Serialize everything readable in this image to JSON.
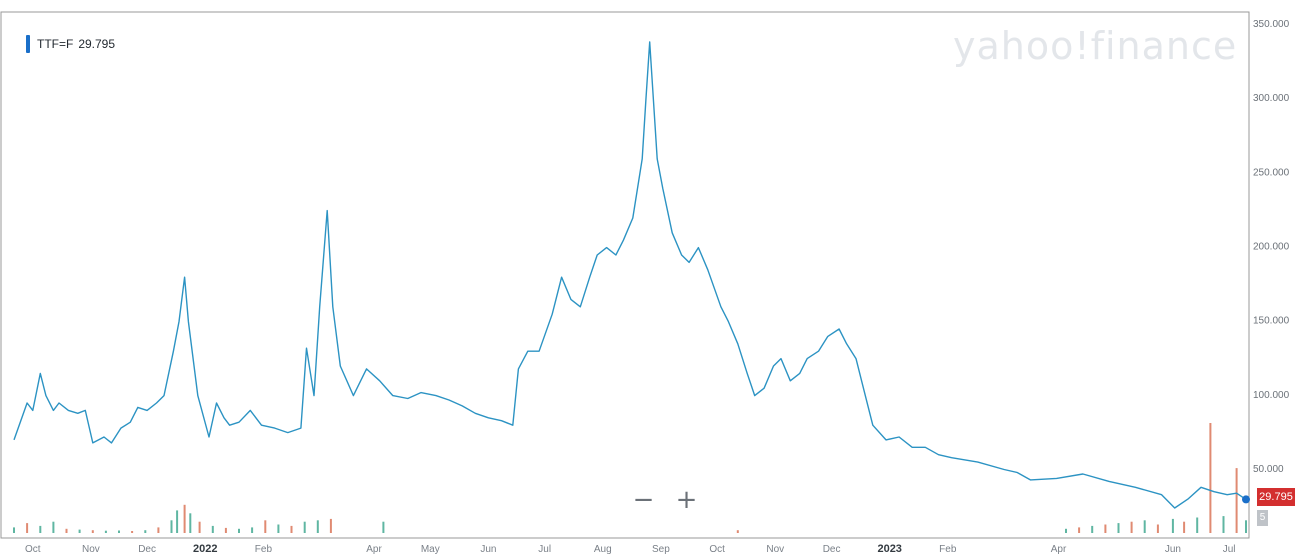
{
  "header": {
    "ticker_symbol": "TTF=F",
    "ticker_value": "29.795",
    "watermark": "yahoo!finance"
  },
  "controls": {
    "zoom_out": "−",
    "zoom_in": "+"
  },
  "price_tag": {
    "value": "29.795",
    "color": "#d32f2f"
  },
  "volume_tag": {
    "value": "5"
  },
  "chart_data": {
    "type": "line",
    "title": "",
    "xlabel": "",
    "ylabel": "",
    "ylim": [
      30,
      350
    ],
    "grid": false,
    "line_color": "#2c93c3",
    "y_ticks": [
      "350.000",
      "300.000",
      "250.000",
      "200.000",
      "150.000",
      "100.000",
      "50.000"
    ],
    "y_tick_values": [
      350,
      300,
      250,
      200,
      150,
      100,
      50
    ],
    "x_ticks": [
      "Oct",
      "Nov",
      "Dec",
      "2022",
      "Feb",
      "Apr",
      "May",
      "Jun",
      "Jul",
      "Aug",
      "Sep",
      "Oct",
      "Nov",
      "Dec",
      "2023",
      "Feb",
      "Apr",
      "Jun",
      "Jul"
    ],
    "x_tick_dates": [
      "2021-10-01",
      "2021-11-01",
      "2021-12-01",
      "2022-01-01",
      "2022-02-01",
      "2022-04-01",
      "2022-05-01",
      "2022-06-01",
      "2022-07-01",
      "2022-08-01",
      "2022-09-01",
      "2022-10-01",
      "2022-11-01",
      "2022-12-01",
      "2023-01-01",
      "2023-02-01",
      "2023-04-01",
      "2023-06-01",
      "2023-07-01"
    ],
    "series": [
      {
        "values": [
          [
            "2021-09-21",
            70
          ],
          [
            "2021-09-28",
            95
          ],
          [
            "2021-10-01",
            90
          ],
          [
            "2021-10-05",
            115
          ],
          [
            "2021-10-08",
            100
          ],
          [
            "2021-10-12",
            90
          ],
          [
            "2021-10-15",
            95
          ],
          [
            "2021-10-20",
            90
          ],
          [
            "2021-10-25",
            88
          ],
          [
            "2021-10-29",
            90
          ],
          [
            "2021-11-02",
            68
          ],
          [
            "2021-11-08",
            72
          ],
          [
            "2021-11-12",
            68
          ],
          [
            "2021-11-17",
            78
          ],
          [
            "2021-11-22",
            82
          ],
          [
            "2021-11-26",
            92
          ],
          [
            "2021-12-01",
            90
          ],
          [
            "2021-12-06",
            95
          ],
          [
            "2021-12-10",
            100
          ],
          [
            "2021-12-15",
            130
          ],
          [
            "2021-12-18",
            150
          ],
          [
            "2021-12-21",
            180
          ],
          [
            "2021-12-23",
            150
          ],
          [
            "2021-12-28",
            100
          ],
          [
            "2022-01-03",
            72
          ],
          [
            "2022-01-07",
            95
          ],
          [
            "2022-01-11",
            85
          ],
          [
            "2022-01-14",
            80
          ],
          [
            "2022-01-19",
            82
          ],
          [
            "2022-01-25",
            90
          ],
          [
            "2022-01-31",
            80
          ],
          [
            "2022-02-07",
            78
          ],
          [
            "2022-02-14",
            75
          ],
          [
            "2022-02-21",
            78
          ],
          [
            "2022-02-24",
            132
          ],
          [
            "2022-02-28",
            100
          ],
          [
            "2022-03-03",
            160
          ],
          [
            "2022-03-07",
            225
          ],
          [
            "2022-03-10",
            160
          ],
          [
            "2022-03-14",
            120
          ],
          [
            "2022-03-21",
            100
          ],
          [
            "2022-03-28",
            118
          ],
          [
            "2022-04-04",
            110
          ],
          [
            "2022-04-11",
            100
          ],
          [
            "2022-04-19",
            98
          ],
          [
            "2022-04-26",
            102
          ],
          [
            "2022-05-04",
            100
          ],
          [
            "2022-05-11",
            97
          ],
          [
            "2022-05-18",
            93
          ],
          [
            "2022-05-25",
            88
          ],
          [
            "2022-06-01",
            85
          ],
          [
            "2022-06-08",
            83
          ],
          [
            "2022-06-14",
            80
          ],
          [
            "2022-06-17",
            118
          ],
          [
            "2022-06-22",
            130
          ],
          [
            "2022-06-28",
            130
          ],
          [
            "2022-07-05",
            155
          ],
          [
            "2022-07-10",
            180
          ],
          [
            "2022-07-15",
            165
          ],
          [
            "2022-07-20",
            160
          ],
          [
            "2022-07-25",
            180
          ],
          [
            "2022-07-29",
            195
          ],
          [
            "2022-08-03",
            200
          ],
          [
            "2022-08-08",
            195
          ],
          [
            "2022-08-12",
            205
          ],
          [
            "2022-08-17",
            220
          ],
          [
            "2022-08-22",
            260
          ],
          [
            "2022-08-24",
            300
          ],
          [
            "2022-08-26",
            339
          ],
          [
            "2022-08-30",
            260
          ],
          [
            "2022-09-02",
            240
          ],
          [
            "2022-09-07",
            210
          ],
          [
            "2022-09-12",
            195
          ],
          [
            "2022-09-16",
            190
          ],
          [
            "2022-09-21",
            200
          ],
          [
            "2022-09-26",
            185
          ],
          [
            "2022-10-03",
            160
          ],
          [
            "2022-10-07",
            150
          ],
          [
            "2022-10-12",
            135
          ],
          [
            "2022-10-17",
            115
          ],
          [
            "2022-10-21",
            100
          ],
          [
            "2022-10-26",
            105
          ],
          [
            "2022-10-31",
            120
          ],
          [
            "2022-11-04",
            125
          ],
          [
            "2022-11-09",
            110
          ],
          [
            "2022-11-14",
            115
          ],
          [
            "2022-11-18",
            125
          ],
          [
            "2022-11-24",
            130
          ],
          [
            "2022-11-29",
            140
          ],
          [
            "2022-12-05",
            145
          ],
          [
            "2022-12-09",
            135
          ],
          [
            "2022-12-14",
            125
          ],
          [
            "2022-12-19",
            100
          ],
          [
            "2022-12-23",
            80
          ],
          [
            "2022-12-30",
            70
          ],
          [
            "2023-01-06",
            72
          ],
          [
            "2023-01-13",
            65
          ],
          [
            "2023-01-20",
            65
          ],
          [
            "2023-01-27",
            60
          ],
          [
            "2023-02-03",
            58
          ],
          [
            "2023-02-17",
            55
          ],
          [
            "2023-03-03",
            50
          ],
          [
            "2023-03-10",
            48
          ],
          [
            "2023-03-17",
            43
          ],
          [
            "2023-03-31",
            44
          ],
          [
            "2023-04-14",
            47
          ],
          [
            "2023-04-28",
            42
          ],
          [
            "2023-05-12",
            38
          ],
          [
            "2023-05-26",
            33
          ],
          [
            "2023-06-02",
            24
          ],
          [
            "2023-06-09",
            30
          ],
          [
            "2023-06-16",
            38
          ],
          [
            "2023-06-23",
            35
          ],
          [
            "2023-06-30",
            33
          ],
          [
            "2023-07-05",
            34
          ],
          [
            "2023-07-10",
            29.795
          ]
        ]
      }
    ],
    "volume": {
      "up_color": "#5fb6a2",
      "down_color": "#e08a72",
      "bars": [
        [
          "2021-09-21",
          20,
          "up"
        ],
        [
          "2021-09-28",
          35,
          "down"
        ],
        [
          "2021-10-05",
          25,
          "up"
        ],
        [
          "2021-10-12",
          40,
          "up"
        ],
        [
          "2021-10-19",
          15,
          "down"
        ],
        [
          "2021-10-26",
          12,
          "up"
        ],
        [
          "2021-11-02",
          10,
          "down"
        ],
        [
          "2021-11-09",
          8,
          "up"
        ],
        [
          "2021-11-16",
          9,
          "up"
        ],
        [
          "2021-11-23",
          7,
          "down"
        ],
        [
          "2021-11-30",
          10,
          "up"
        ],
        [
          "2021-12-07",
          20,
          "down"
        ],
        [
          "2021-12-14",
          45,
          "up"
        ],
        [
          "2021-12-17",
          80,
          "up"
        ],
        [
          "2021-12-21",
          100,
          "down"
        ],
        [
          "2021-12-24",
          70,
          "up"
        ],
        [
          "2021-12-29",
          40,
          "down"
        ],
        [
          "2022-01-05",
          25,
          "up"
        ],
        [
          "2022-01-12",
          18,
          "down"
        ],
        [
          "2022-01-19",
          15,
          "up"
        ],
        [
          "2022-01-26",
          20,
          "up"
        ],
        [
          "2022-02-02",
          45,
          "down"
        ],
        [
          "2022-02-09",
          30,
          "up"
        ],
        [
          "2022-02-16",
          25,
          "down"
        ],
        [
          "2022-02-23",
          40,
          "up"
        ],
        [
          "2022-03-02",
          45,
          "up"
        ],
        [
          "2022-03-09",
          50,
          "down"
        ],
        [
          "2022-04-06",
          40,
          "up"
        ],
        [
          "2022-10-12",
          10,
          "down"
        ],
        [
          "2023-04-05",
          15,
          "up"
        ],
        [
          "2023-04-12",
          20,
          "down"
        ],
        [
          "2023-04-19",
          25,
          "up"
        ],
        [
          "2023-04-26",
          30,
          "down"
        ],
        [
          "2023-05-03",
          35,
          "up"
        ],
        [
          "2023-05-10",
          40,
          "down"
        ],
        [
          "2023-05-17",
          45,
          "up"
        ],
        [
          "2023-05-24",
          30,
          "down"
        ],
        [
          "2023-06-01",
          50,
          "up"
        ],
        [
          "2023-06-07",
          40,
          "down"
        ],
        [
          "2023-06-14",
          55,
          "up"
        ],
        [
          "2023-06-21",
          390,
          "down"
        ],
        [
          "2023-06-28",
          60,
          "up"
        ],
        [
          "2023-07-05",
          230,
          "down"
        ],
        [
          "2023-07-10",
          45,
          "up"
        ]
      ]
    }
  }
}
